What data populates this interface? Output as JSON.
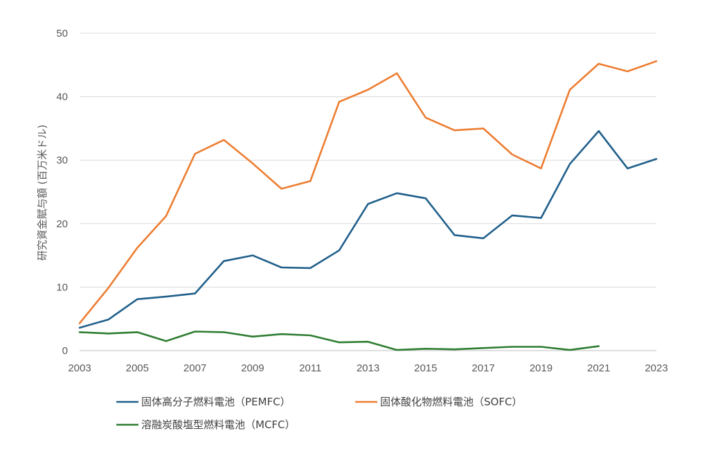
{
  "chart_data": {
    "type": "line",
    "title": "",
    "xlabel": "",
    "ylabel": "研究資金賦与額 (百万米ドル)",
    "xlim": [
      2003,
      2023
    ],
    "ylim": [
      0,
      50
    ],
    "x_tick_labels": [
      "2003",
      "2005",
      "2007",
      "2009",
      "2011",
      "2013",
      "2015",
      "2017",
      "2019",
      "2021",
      "2023"
    ],
    "y_tick_labels": [
      "0",
      "10",
      "20",
      "30",
      "40",
      "50"
    ],
    "grid": true,
    "legend_position": "bottom",
    "series": [
      {
        "name": "固体高分子燃料電池（PEMFC）",
        "color": "#1f5f8b",
        "x": [
          2003,
          2004,
          2005,
          2006,
          2007,
          2008,
          2009,
          2010,
          2011,
          2012,
          2013,
          2014,
          2015,
          2016,
          2017,
          2018,
          2019,
          2020,
          2021,
          2022,
          2023
        ],
        "values": [
          3.6,
          4.9,
          8.1,
          8.5,
          9.0,
          14.1,
          15.0,
          13.1,
          13.0,
          15.8,
          23.1,
          24.8,
          24.0,
          18.2,
          17.7,
          21.3,
          20.9,
          29.4,
          34.6,
          28.7,
          30.2
        ]
      },
      {
        "name": "固体酸化物燃料電池（SOFC）",
        "color": "#ed7d31",
        "x": [
          2003,
          2004,
          2005,
          2006,
          2007,
          2008,
          2009,
          2010,
          2011,
          2012,
          2013,
          2014,
          2015,
          2016,
          2017,
          2018,
          2019,
          2020,
          2021,
          2022,
          2023
        ],
        "values": [
          4.3,
          9.9,
          16.2,
          21.2,
          31.0,
          33.2,
          29.5,
          25.5,
          26.7,
          39.2,
          41.1,
          43.7,
          36.7,
          34.7,
          35.0,
          30.9,
          28.7,
          41.1,
          45.2,
          44.0,
          45.6
        ]
      },
      {
        "name": "溶融炭酸塩型燃料電池（MCFC）",
        "color": "#2e7d32",
        "x": [
          2003,
          2004,
          2005,
          2006,
          2007,
          2008,
          2009,
          2010,
          2011,
          2012,
          2013,
          2014,
          2015,
          2016,
          2017,
          2018,
          2019,
          2020,
          2021
        ],
        "values": [
          2.9,
          2.7,
          2.9,
          1.5,
          3.0,
          2.9,
          2.2,
          2.6,
          2.4,
          1.3,
          1.4,
          0.1,
          0.3,
          0.2,
          0.4,
          0.6,
          0.6,
          0.1,
          0.7
        ]
      }
    ]
  }
}
